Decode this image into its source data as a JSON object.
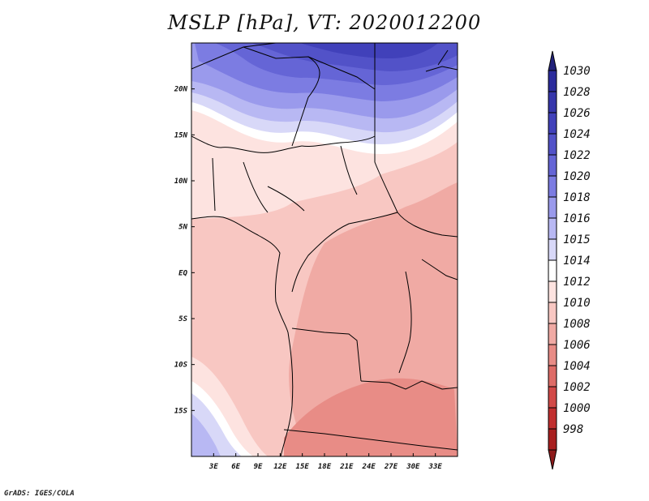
{
  "title": "MSLP [hPa], VT: 2020012200",
  "credit": "GrADS: IGES/COLA",
  "x_ticks": [
    "3E",
    "6E",
    "9E",
    "12E",
    "15E",
    "18E",
    "21E",
    "24E",
    "27E",
    "30E",
    "33E"
  ],
  "y_ticks": [
    "20N",
    "15N",
    "10N",
    "5N",
    "EQ",
    "5S",
    "10S",
    "15S"
  ],
  "colorbar": [
    {
      "label": "1030",
      "color": "#2b2b9c"
    },
    {
      "label": "1028",
      "color": "#3636ab"
    },
    {
      "label": "1026",
      "color": "#4141ba"
    },
    {
      "label": "1024",
      "color": "#5252c8"
    },
    {
      "label": "1022",
      "color": "#6565d6"
    },
    {
      "label": "1020",
      "color": "#7c7ce2"
    },
    {
      "label": "1018",
      "color": "#9a9aec"
    },
    {
      "label": "1016",
      "color": "#b8b8f3"
    },
    {
      "label": "1015",
      "color": "#d8d8f8"
    },
    {
      "label": "1014",
      "color": "#ffffff"
    },
    {
      "label": "1012",
      "color": "#fde3e0"
    },
    {
      "label": "1010",
      "color": "#f8c7c2"
    },
    {
      "label": "1008",
      "color": "#f0aaa4"
    },
    {
      "label": "1006",
      "color": "#e88c86"
    },
    {
      "label": "1004",
      "color": "#de6c67"
    },
    {
      "label": "1002",
      "color": "#d24a48"
    },
    {
      "label": "1000",
      "color": "#c12f2f"
    },
    {
      "label": "998",
      "color": "#a81f1f"
    }
  ],
  "colorbar_top_color": "#22227a",
  "colorbar_bottom_color": "#8e1a1a"
}
